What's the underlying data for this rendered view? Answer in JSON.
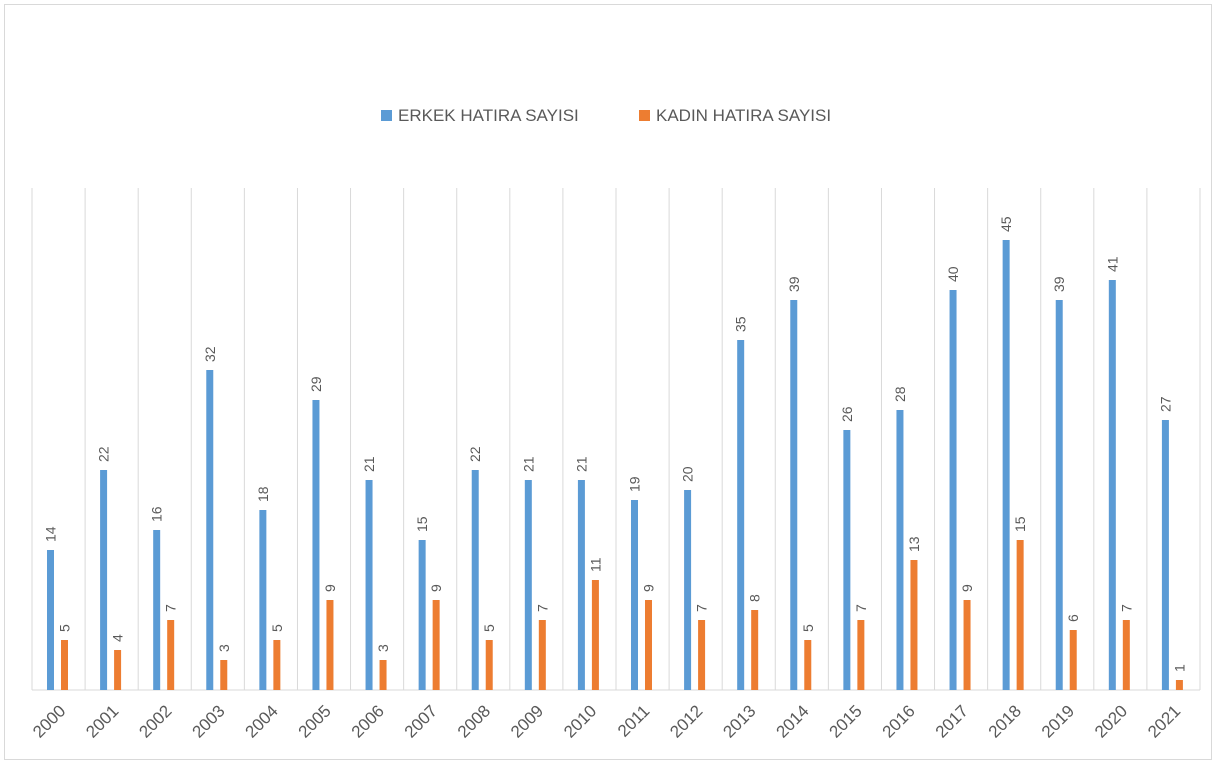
{
  "chart_data": {
    "type": "bar",
    "title": "",
    "xlabel": "",
    "ylabel": "",
    "legend_position": "top",
    "grid": "vertical",
    "ylim": [
      0,
      45
    ],
    "categories": [
      "2000",
      "2001",
      "2002",
      "2003",
      "2004",
      "2005",
      "2006",
      "2007",
      "2008",
      "2009",
      "2010",
      "2011",
      "2012",
      "2013",
      "2014",
      "2015",
      "2016",
      "2017",
      "2018",
      "2019",
      "2020",
      "2021"
    ],
    "series": [
      {
        "name": "ERKEK HATIRA SAYISI",
        "color": "#5b9bd5",
        "values": [
          14,
          22,
          16,
          32,
          18,
          29,
          21,
          15,
          22,
          21,
          21,
          19,
          20,
          35,
          39,
          26,
          28,
          40,
          45,
          39,
          41,
          27
        ]
      },
      {
        "name": "KADIN HATIRA SAYISI",
        "color": "#ed7d31",
        "values": [
          5,
          4,
          7,
          3,
          5,
          9,
          3,
          9,
          5,
          7,
          11,
          9,
          7,
          8,
          5,
          7,
          13,
          9,
          15,
          6,
          7,
          1
        ]
      }
    ]
  }
}
